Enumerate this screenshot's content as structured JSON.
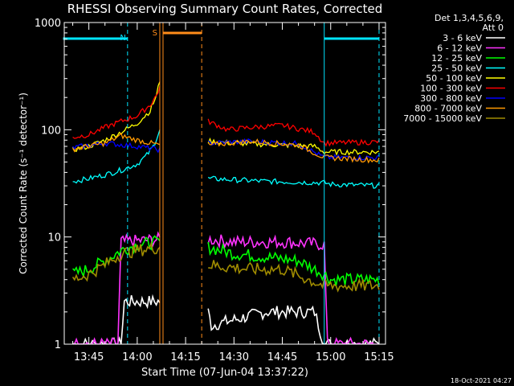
{
  "chart_data": {
    "type": "line",
    "title": "RHESSI Observing Summary Count Rates, Corrected",
    "xlabel": "Start Time (07-Jun-04 13:37:22)",
    "ylabel": "Corrected Count Rate (s⁻¹ detector⁻¹)",
    "xlim": [
      "13:37:22",
      "15:17:00"
    ],
    "ylim": [
      1,
      1000
    ],
    "yscale": "log",
    "x_ticks": [
      "13:45",
      "14:00",
      "14:15",
      "14:30",
      "14:45",
      "15:00",
      "15:15"
    ],
    "y_ticks": [
      "1",
      "10",
      "100",
      "1000"
    ],
    "legend_title": [
      "Det 1,3,4,5,6,9,",
      "Att 0"
    ],
    "legend_placement": "right",
    "footer": "18-Oct-2021 04:27",
    "annotations": {
      "night_label": "N",
      "saa_label": "S",
      "night_color": "#00e5ff",
      "saa_color": "#ff8c1a",
      "night_periods": [
        [
          "13:37",
          "13:57"
        ],
        [
          "14:58",
          "15:15"
        ]
      ],
      "saa_period": [
        "14:08",
        "14:20"
      ],
      "marker_times": [
        "13:57",
        "14:07",
        "14:08",
        "14:20",
        "14:58",
        "15:15"
      ]
    },
    "gaps": [
      [
        "14:07",
        "14:22"
      ]
    ],
    "series": [
      {
        "name": "3 - 6 keV",
        "color": "#ffffff",
        "times": [
          "13:40",
          "13:55",
          "13:56",
          "14:07",
          "14:22",
          "14:23",
          "14:40",
          "14:55",
          "14:58",
          "15:15"
        ],
        "values": [
          1.0,
          1.0,
          2.5,
          2.5,
          2.0,
          1.5,
          2.0,
          2.0,
          1.0,
          1.0
        ]
      },
      {
        "name": "6 - 12 keV",
        "color": "#ff33ff",
        "times": [
          "13:40",
          "13:54",
          "13:55",
          "14:07",
          "14:22",
          "14:30",
          "14:45",
          "14:58",
          "14:59",
          "15:15"
        ],
        "values": [
          1.0,
          1.0,
          9.0,
          9.5,
          9.5,
          9.0,
          9.0,
          8.5,
          1.0,
          1.0
        ]
      },
      {
        "name": "12 - 25 keV",
        "color": "#00ff00",
        "times": [
          "13:40",
          "13:45",
          "13:50",
          "13:55",
          "14:00",
          "14:07",
          "14:22",
          "14:30",
          "14:40",
          "14:50",
          "14:58",
          "15:00",
          "15:15"
        ],
        "values": [
          4.5,
          5.0,
          6.0,
          7.5,
          8.5,
          9.0,
          8.0,
          7.0,
          6.5,
          6.0,
          4.5,
          4.0,
          4.0
        ]
      },
      {
        "name": "25 - 50 keV",
        "color": "#00ffff",
        "times": [
          "13:40",
          "13:45",
          "13:50",
          "13:55",
          "14:00",
          "14:03",
          "14:05",
          "14:07",
          "14:22",
          "14:40",
          "14:58",
          "15:00",
          "15:15"
        ],
        "values": [
          33,
          35,
          38,
          42,
          48,
          58,
          70,
          100,
          35,
          33,
          32,
          31,
          30
        ]
      },
      {
        "name": "50 - 100 keV",
        "color": "#ffff00",
        "times": [
          "13:40",
          "13:45",
          "13:50",
          "13:55",
          "14:00",
          "14:04",
          "14:06",
          "14:07",
          "14:22",
          "14:30",
          "14:45",
          "14:55",
          "14:58",
          "15:15"
        ],
        "values": [
          65,
          70,
          80,
          95,
          115,
          150,
          210,
          290,
          78,
          75,
          72,
          70,
          62,
          62
        ]
      },
      {
        "name": "100 - 300 keV",
        "color": "#ff0000",
        "times": [
          "13:40",
          "13:45",
          "13:50",
          "13:55",
          "14:00",
          "14:04",
          "14:06",
          "14:07",
          "14:22",
          "14:28",
          "14:35",
          "14:45",
          "14:55",
          "14:58",
          "15:15"
        ],
        "values": [
          85,
          90,
          105,
          120,
          135,
          170,
          210,
          250,
          120,
          100,
          105,
          110,
          95,
          75,
          77
        ]
      },
      {
        "name": "300 - 800 keV",
        "color": "#0000ff",
        "times": [
          "13:40",
          "13:50",
          "14:00",
          "14:07",
          "14:22",
          "14:35",
          "14:50",
          "14:58",
          "15:15"
        ],
        "values": [
          68,
          75,
          70,
          65,
          75,
          78,
          74,
          55,
          55
        ]
      },
      {
        "name": "800 - 7000 keV",
        "color": "#ff9900",
        "times": [
          "13:40",
          "13:50",
          "13:55",
          "14:00",
          "14:07",
          "14:22",
          "14:35",
          "14:50",
          "14:58",
          "15:15"
        ],
        "values": [
          66,
          75,
          88,
          80,
          72,
          72,
          78,
          72,
          55,
          52
        ]
      },
      {
        "name": "7000 - 15000 keV",
        "color": "#a08c00",
        "times": [
          "13:40",
          "13:45",
          "13:50",
          "13:55",
          "14:00",
          "14:07",
          "14:22",
          "14:35",
          "14:45",
          "14:58",
          "15:00",
          "15:15"
        ],
        "values": [
          4.0,
          4.5,
          5.5,
          7.0,
          7.5,
          8.0,
          5.5,
          5.0,
          5.0,
          3.5,
          3.5,
          3.5
        ]
      }
    ]
  }
}
